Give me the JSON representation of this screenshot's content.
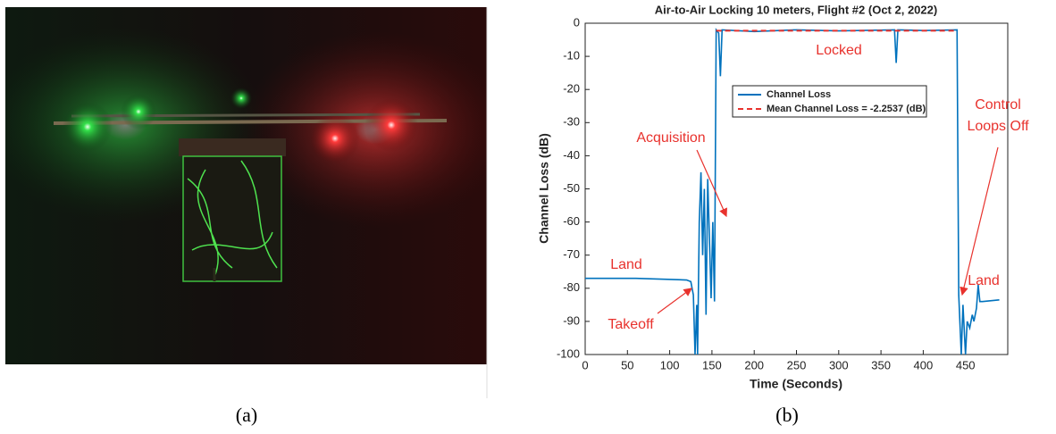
{
  "captions": [
    "(a)",
    "(b)"
  ],
  "chart_data": {
    "type": "line",
    "title": "Air-to-Air Locking 10 meters, Flight #2 (Oct 2, 2022)",
    "x_label": "Time (Seconds)",
    "y_label": "Channel Loss (dB)",
    "xlim": [
      0,
      500
    ],
    "xticks": [
      0,
      50,
      100,
      150,
      200,
      250,
      300,
      350,
      400,
      450
    ],
    "ylim": [
      -100,
      0
    ],
    "yticks": [
      -100,
      -90,
      -80,
      -70,
      -60,
      -50,
      -40,
      -30,
      -20,
      -10,
      0
    ],
    "grid": false,
    "legend": "top",
    "series": [
      {
        "name": "Channel Loss",
        "color": "#0072bd",
        "dash": false,
        "x": [
          0,
          60,
          120,
          125,
          128,
          130,
          132,
          133,
          135,
          137,
          139,
          141,
          143,
          145,
          147,
          149,
          151,
          153,
          155,
          158,
          160,
          162,
          200,
          250,
          300,
          366,
          368,
          370,
          400,
          440,
          442,
          445,
          447,
          450,
          452,
          455,
          458,
          460,
          463,
          465,
          467,
          470,
          490
        ],
        "values": [
          -77,
          -77,
          -77.5,
          -78,
          -82,
          -100,
          -85,
          -100,
          -60,
          -45,
          -70,
          -50,
          -88,
          -47,
          -65,
          -83,
          -60,
          -84,
          -2,
          -3,
          -16,
          -2,
          -2.5,
          -2,
          -2.3,
          -2,
          -12,
          -2,
          -2.2,
          -2,
          -82,
          -100,
          -85,
          -100,
          -90,
          -92,
          -88,
          -90,
          -86,
          -79,
          -84,
          -84,
          -83.5
        ]
      },
      {
        "name": "Mean Channel Loss = -2.2537 (dB)",
        "color": "#e8322d",
        "dash": true,
        "x": [
          155,
          440
        ],
        "values": [
          -2.2537,
          -2.2537
        ]
      }
    ],
    "annotations": [
      {
        "lines": [
          "Locked"
        ]
      },
      {
        "lines": [
          "Acquisition"
        ]
      },
      {
        "lines": [
          "Control",
          "Loops Off"
        ]
      },
      {
        "lines": [
          "Land"
        ]
      },
      {
        "lines": [
          "Takeoff"
        ]
      },
      {
        "lines": [
          "Land"
        ]
      }
    ]
  }
}
